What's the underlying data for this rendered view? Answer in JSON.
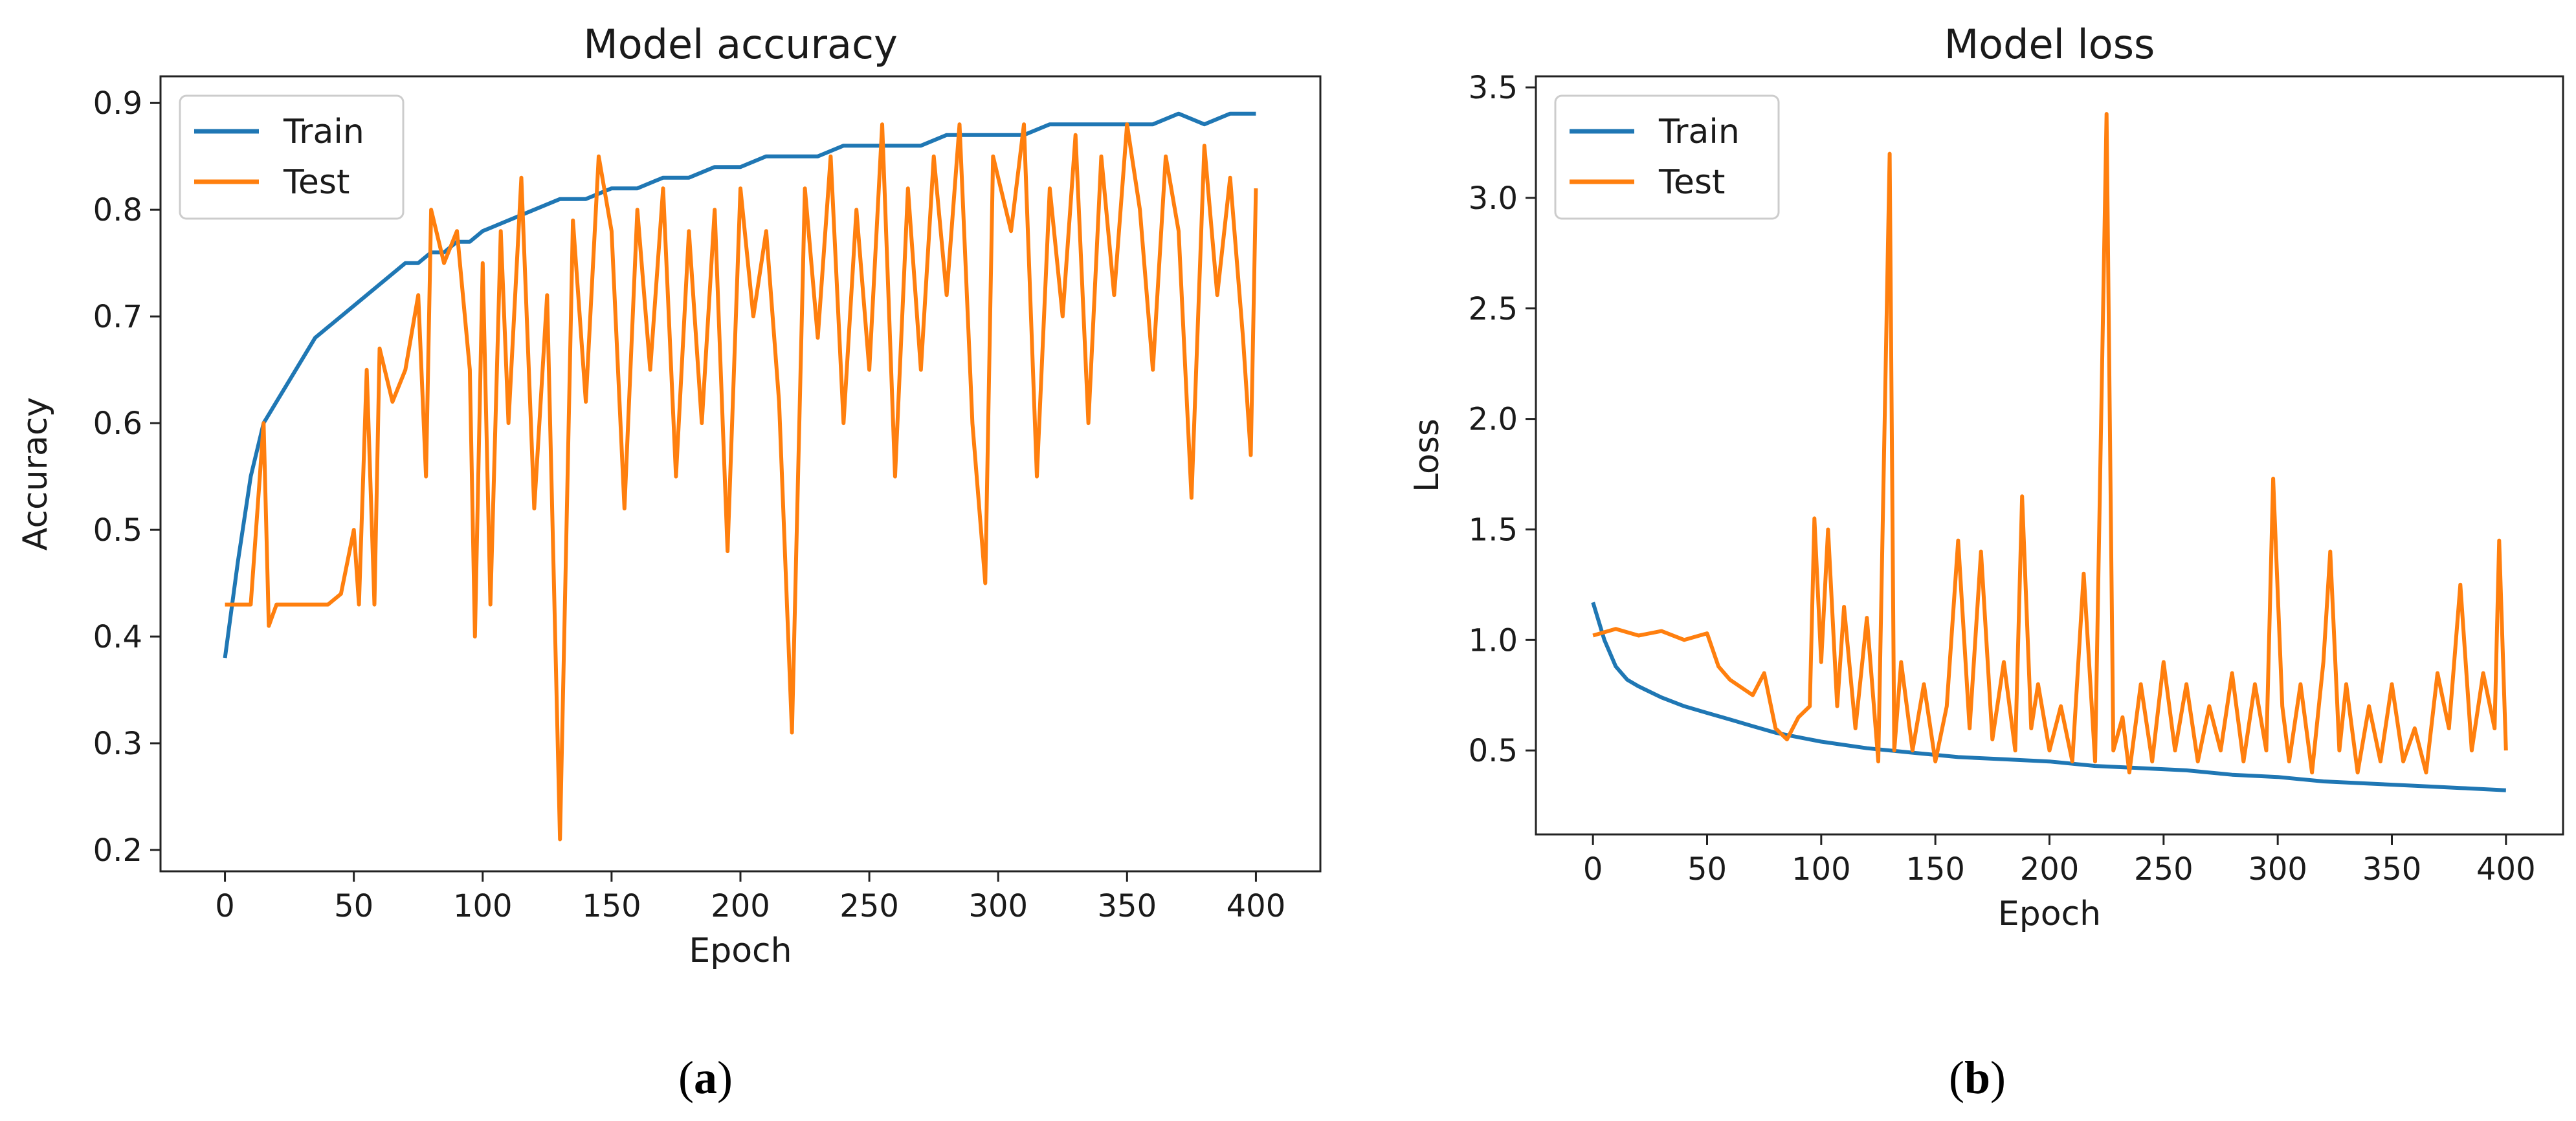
{
  "chart_data": [
    {
      "type": "line",
      "title": "Model accuracy",
      "xlabel": "Epoch",
      "ylabel": "Accuracy",
      "xlim": [
        -25,
        425
      ],
      "ylim": [
        0.18,
        0.925
      ],
      "xticks": [
        0,
        50,
        100,
        150,
        200,
        250,
        300,
        350,
        400
      ],
      "yticks": [
        0.2,
        0.3,
        0.4,
        0.5,
        0.6,
        0.7,
        0.8,
        0.9
      ],
      "legend_position": "top-left",
      "grid": false,
      "panel_label": {
        "open": "(",
        "letter": "a",
        "close": ")"
      },
      "series": [
        {
          "name": "Train",
          "color": "#1f77b4",
          "x": [
            0,
            5,
            10,
            15,
            20,
            25,
            30,
            35,
            40,
            45,
            50,
            55,
            60,
            65,
            70,
            75,
            80,
            85,
            90,
            95,
            100,
            110,
            120,
            130,
            140,
            150,
            160,
            170,
            180,
            190,
            200,
            210,
            220,
            230,
            240,
            250,
            260,
            270,
            280,
            290,
            300,
            310,
            320,
            330,
            340,
            350,
            360,
            370,
            380,
            390,
            400
          ],
          "values": [
            0.38,
            0.47,
            0.55,
            0.6,
            0.62,
            0.64,
            0.66,
            0.68,
            0.69,
            0.7,
            0.71,
            0.72,
            0.73,
            0.74,
            0.75,
            0.75,
            0.76,
            0.76,
            0.77,
            0.77,
            0.78,
            0.79,
            0.8,
            0.81,
            0.81,
            0.82,
            0.82,
            0.83,
            0.83,
            0.84,
            0.84,
            0.85,
            0.85,
            0.85,
            0.86,
            0.86,
            0.86,
            0.86,
            0.87,
            0.87,
            0.87,
            0.87,
            0.88,
            0.88,
            0.88,
            0.88,
            0.88,
            0.89,
            0.88,
            0.89,
            0.89
          ]
        },
        {
          "name": "Test",
          "color": "#ff7f0e",
          "x": [
            0,
            10,
            15,
            17,
            20,
            30,
            40,
            45,
            50,
            52,
            55,
            58,
            60,
            65,
            70,
            75,
            78,
            80,
            85,
            90,
            95,
            97,
            100,
            103,
            107,
            110,
            115,
            120,
            125,
            130,
            135,
            140,
            145,
            150,
            155,
            160,
            165,
            170,
            175,
            180,
            185,
            190,
            195,
            200,
            205,
            210,
            215,
            220,
            225,
            230,
            235,
            240,
            245,
            250,
            255,
            260,
            265,
            270,
            275,
            280,
            285,
            290,
            295,
            298,
            305,
            310,
            315,
            320,
            325,
            330,
            335,
            340,
            345,
            350,
            355,
            360,
            365,
            370,
            375,
            380,
            385,
            390,
            395,
            398,
            400
          ],
          "values": [
            0.43,
            0.43,
            0.6,
            0.41,
            0.43,
            0.43,
            0.43,
            0.44,
            0.5,
            0.43,
            0.65,
            0.43,
            0.67,
            0.62,
            0.65,
            0.72,
            0.55,
            0.8,
            0.75,
            0.78,
            0.65,
            0.4,
            0.75,
            0.43,
            0.78,
            0.6,
            0.83,
            0.52,
            0.72,
            0.21,
            0.79,
            0.62,
            0.85,
            0.78,
            0.52,
            0.8,
            0.65,
            0.82,
            0.55,
            0.78,
            0.6,
            0.8,
            0.48,
            0.82,
            0.7,
            0.78,
            0.62,
            0.31,
            0.82,
            0.68,
            0.85,
            0.6,
            0.8,
            0.65,
            0.88,
            0.55,
            0.82,
            0.65,
            0.85,
            0.72,
            0.88,
            0.6,
            0.45,
            0.85,
            0.78,
            0.88,
            0.55,
            0.82,
            0.7,
            0.87,
            0.6,
            0.85,
            0.72,
            0.88,
            0.8,
            0.65,
            0.85,
            0.78,
            0.53,
            0.86,
            0.72,
            0.83,
            0.68,
            0.57,
            0.82
          ]
        }
      ]
    },
    {
      "type": "line",
      "title": "Model loss",
      "xlabel": "Epoch",
      "ylabel": "Loss",
      "xlim": [
        -25,
        425
      ],
      "ylim": [
        0.12,
        3.55
      ],
      "xticks": [
        0,
        50,
        100,
        150,
        200,
        250,
        300,
        350,
        400
      ],
      "yticks": [
        0.5,
        1.0,
        1.5,
        2.0,
        2.5,
        3.0,
        3.5
      ],
      "legend_position": "top-left",
      "grid": false,
      "panel_label": {
        "open": "(",
        "letter": "b",
        "close": ")"
      },
      "series": [
        {
          "name": "Train",
          "color": "#1f77b4",
          "x": [
            0,
            5,
            10,
            15,
            20,
            30,
            40,
            50,
            60,
            70,
            80,
            90,
            100,
            120,
            140,
            160,
            180,
            200,
            220,
            240,
            260,
            280,
            300,
            320,
            340,
            360,
            380,
            400
          ],
          "values": [
            1.17,
            1.0,
            0.88,
            0.82,
            0.79,
            0.74,
            0.7,
            0.67,
            0.64,
            0.61,
            0.58,
            0.56,
            0.54,
            0.51,
            0.49,
            0.47,
            0.46,
            0.45,
            0.43,
            0.42,
            0.41,
            0.39,
            0.38,
            0.36,
            0.35,
            0.34,
            0.33,
            0.32
          ]
        },
        {
          "name": "Test",
          "color": "#ff7f0e",
          "x": [
            0,
            10,
            20,
            30,
            40,
            50,
            55,
            60,
            70,
            75,
            80,
            85,
            90,
            95,
            97,
            100,
            103,
            107,
            110,
            115,
            120,
            125,
            130,
            132,
            135,
            140,
            145,
            150,
            155,
            160,
            165,
            170,
            175,
            180,
            185,
            188,
            192,
            195,
            200,
            205,
            210,
            215,
            220,
            225,
            228,
            232,
            235,
            240,
            245,
            250,
            255,
            260,
            265,
            270,
            275,
            280,
            285,
            290,
            295,
            298,
            302,
            305,
            310,
            315,
            320,
            323,
            327,
            330,
            335,
            340,
            345,
            350,
            355,
            360,
            365,
            370,
            375,
            380,
            385,
            390,
            395,
            397,
            400
          ],
          "values": [
            1.02,
            1.05,
            1.02,
            1.04,
            1.0,
            1.03,
            0.88,
            0.82,
            0.75,
            0.85,
            0.6,
            0.55,
            0.65,
            0.7,
            1.55,
            0.9,
            1.5,
            0.7,
            1.15,
            0.6,
            1.1,
            0.45,
            3.2,
            0.5,
            0.9,
            0.5,
            0.8,
            0.45,
            0.7,
            1.45,
            0.6,
            1.4,
            0.55,
            0.9,
            0.5,
            1.65,
            0.6,
            0.8,
            0.5,
            0.7,
            0.45,
            1.3,
            0.45,
            3.38,
            0.5,
            0.65,
            0.4,
            0.8,
            0.45,
            0.9,
            0.5,
            0.8,
            0.45,
            0.7,
            0.5,
            0.85,
            0.45,
            0.8,
            0.5,
            1.73,
            0.7,
            0.45,
            0.8,
            0.4,
            0.9,
            1.4,
            0.5,
            0.8,
            0.4,
            0.7,
            0.45,
            0.8,
            0.45,
            0.6,
            0.4,
            0.85,
            0.6,
            1.25,
            0.5,
            0.85,
            0.6,
            1.45,
            0.5
          ]
        }
      ]
    }
  ]
}
